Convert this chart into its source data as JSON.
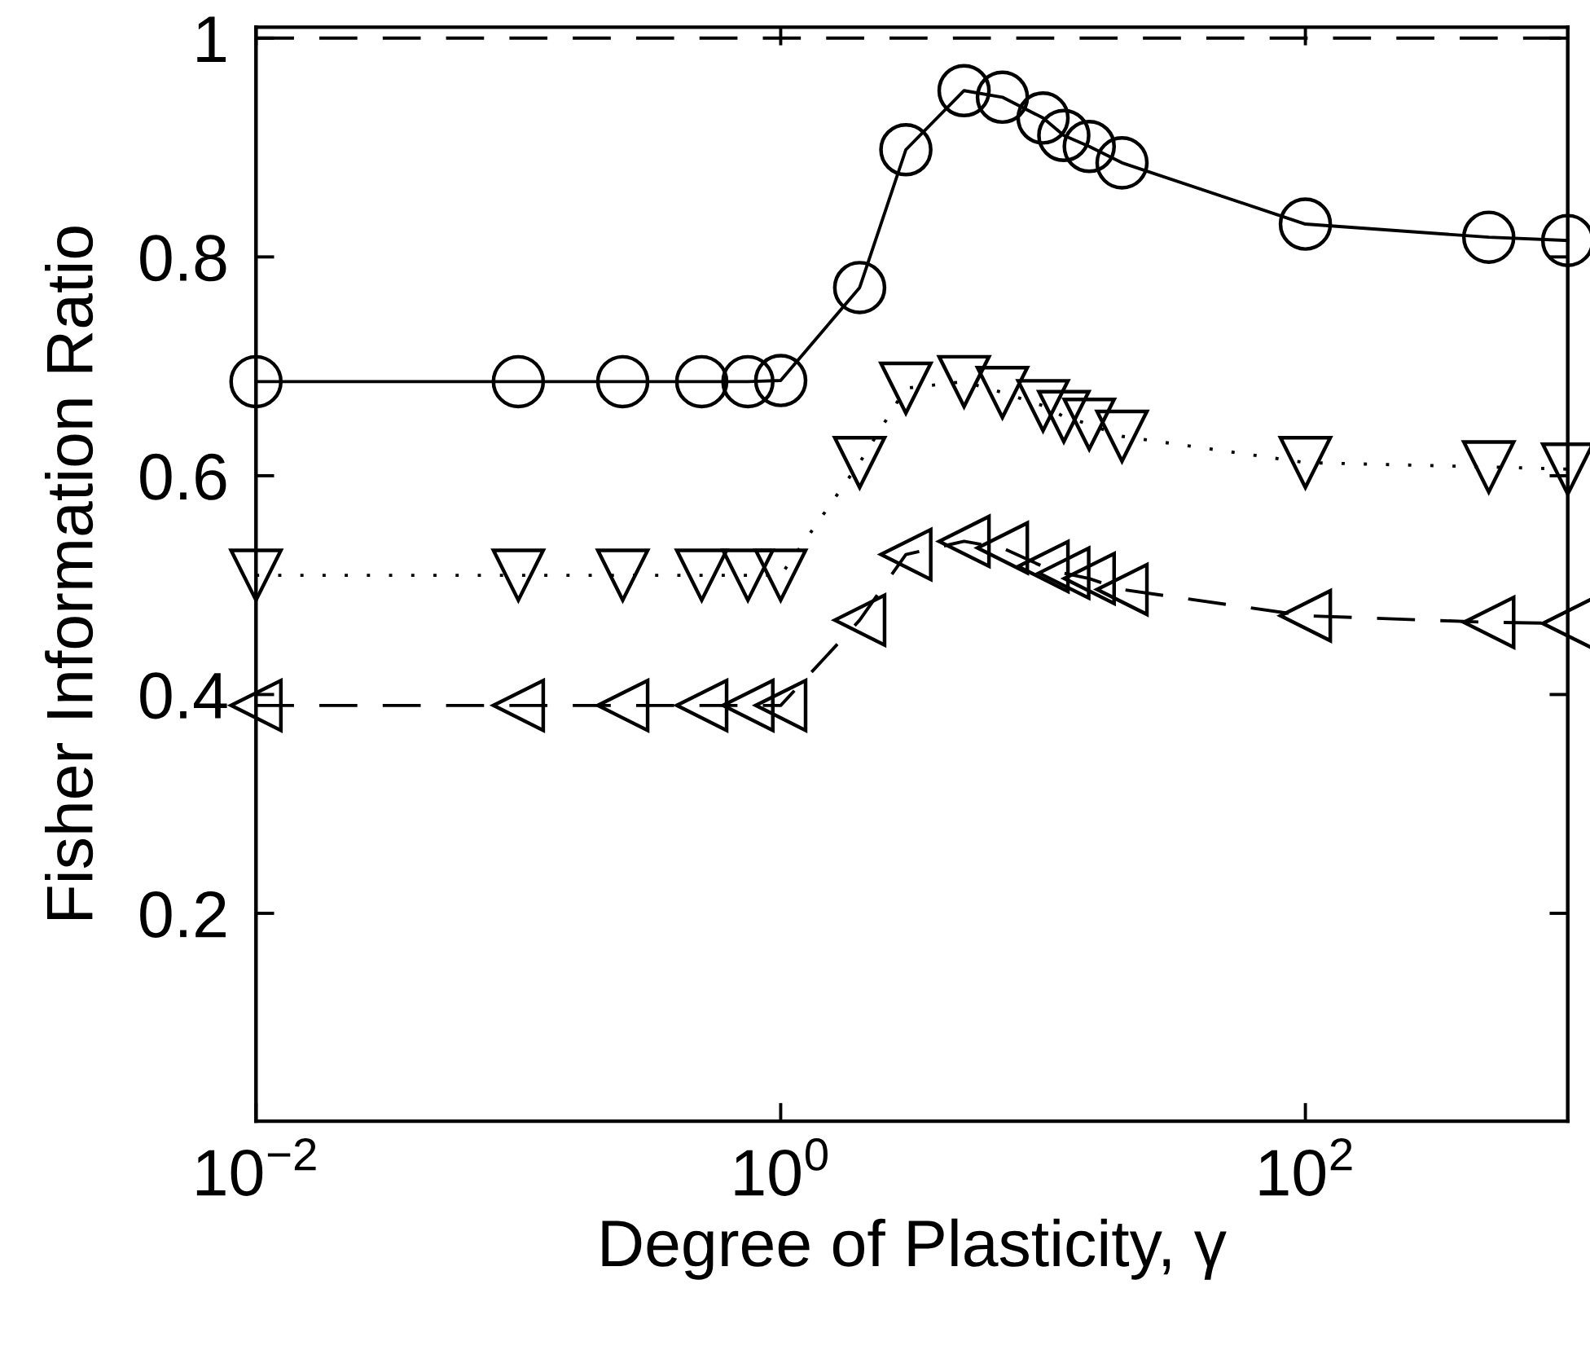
{
  "chart_data": {
    "type": "line",
    "xlabel": "Degree of Plasticity, γ",
    "ylabel": "Fisher Information Ratio",
    "log": "x",
    "grid": false,
    "x": [
      0.01,
      0.1,
      0.25,
      0.5,
      0.75,
      1,
      2,
      3,
      5,
      7,
      10,
      12,
      15,
      20,
      100,
      500,
      1000
    ],
    "xlim": [
      0.01,
      1000
    ],
    "ylim": [
      0.01,
      1.01
    ],
    "xticks": [
      {
        "value": 0.01,
        "label": "10$^{−2}$"
      },
      {
        "value": 1,
        "label": "10$^{0}$"
      },
      {
        "value": 100,
        "label": "10$^{2}$"
      }
    ],
    "yticks": [
      0.2,
      0.4,
      0.6,
      0.8,
      1
    ],
    "ref_lines": [
      {
        "axis": "y",
        "value": 1,
        "label": null,
        "color": "#000000",
        "line_style": "dashed"
      }
    ],
    "series": [
      {
        "color": "#000000",
        "marker": "circle",
        "line_style": "solid",
        "values": [
          0.686,
          0.686,
          0.686,
          0.686,
          0.686,
          0.687,
          0.772,
          0.898,
          0.952,
          0.946,
          0.927,
          0.911,
          0.901,
          0.886,
          0.83,
          0.818,
          0.815
        ]
      },
      {
        "color": "#000000",
        "marker": "triangle-down",
        "line_style": "dotted",
        "values": [
          0.509,
          0.509,
          0.509,
          0.509,
          0.509,
          0.509,
          0.612,
          0.68,
          0.686,
          0.676,
          0.664,
          0.654,
          0.647,
          0.636,
          0.612,
          0.608,
          0.606
        ]
      },
      {
        "color": "#000000",
        "marker": "triangle-left",
        "line_style": "dashed",
        "values": [
          0.39,
          0.39,
          0.39,
          0.39,
          0.39,
          0.39,
          0.468,
          0.528,
          0.54,
          0.534,
          0.517,
          0.511,
          0.506,
          0.496,
          0.472,
          0.466,
          0.465
        ]
      }
    ]
  }
}
